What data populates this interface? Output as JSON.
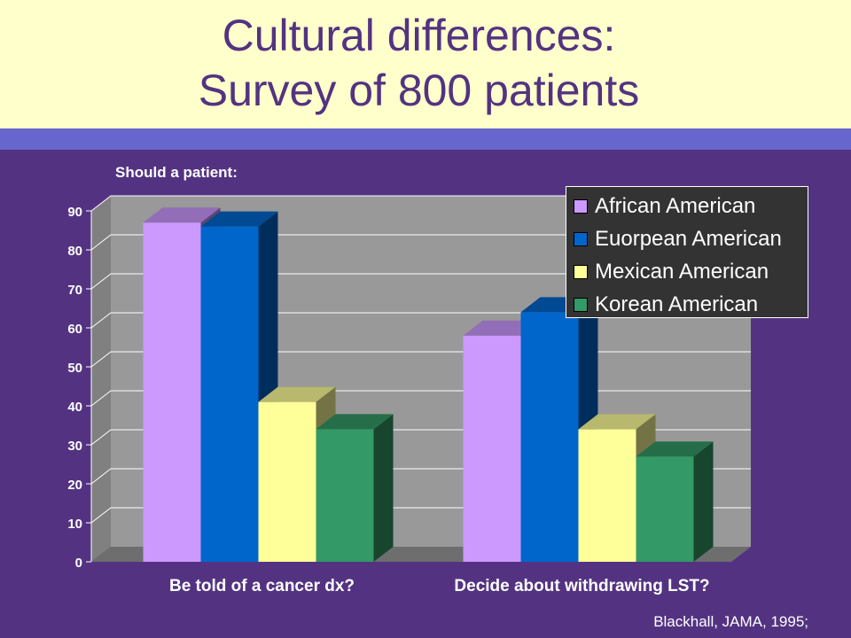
{
  "slide": {
    "title_line1": "Cultural differences:",
    "title_line2": "Survey of 800 patients",
    "subtitle": "Should a patient:",
    "source": "Blackhall, JAMA, 1995;"
  },
  "colors": {
    "background": "#533381",
    "title_band": "#FFFFCC",
    "title_text": "#533381",
    "accent_bar": "#6666CC",
    "plot_wall": "#999999"
  },
  "chart_data": {
    "type": "bar",
    "style": "3d-clustered",
    "title": "",
    "xlabel": "",
    "ylabel": "",
    "ylim": [
      0,
      90
    ],
    "yticks": [
      0,
      10,
      20,
      30,
      40,
      50,
      60,
      70,
      80,
      90
    ],
    "grid": true,
    "legend_position": "top-right",
    "categories": [
      "Be told of a cancer dx?",
      "Decide about withdrawing LST?"
    ],
    "series": [
      {
        "name": "African American",
        "values": [
          87,
          58
        ],
        "color": "#CC99FF"
      },
      {
        "name": "Euorpean American",
        "values": [
          86,
          64
        ],
        "color": "#0066CC"
      },
      {
        "name": "Mexican American",
        "values": [
          41,
          34
        ],
        "color": "#FFFF99"
      },
      {
        "name": "Korean American",
        "values": [
          34,
          27
        ],
        "color": "#339966"
      }
    ]
  }
}
